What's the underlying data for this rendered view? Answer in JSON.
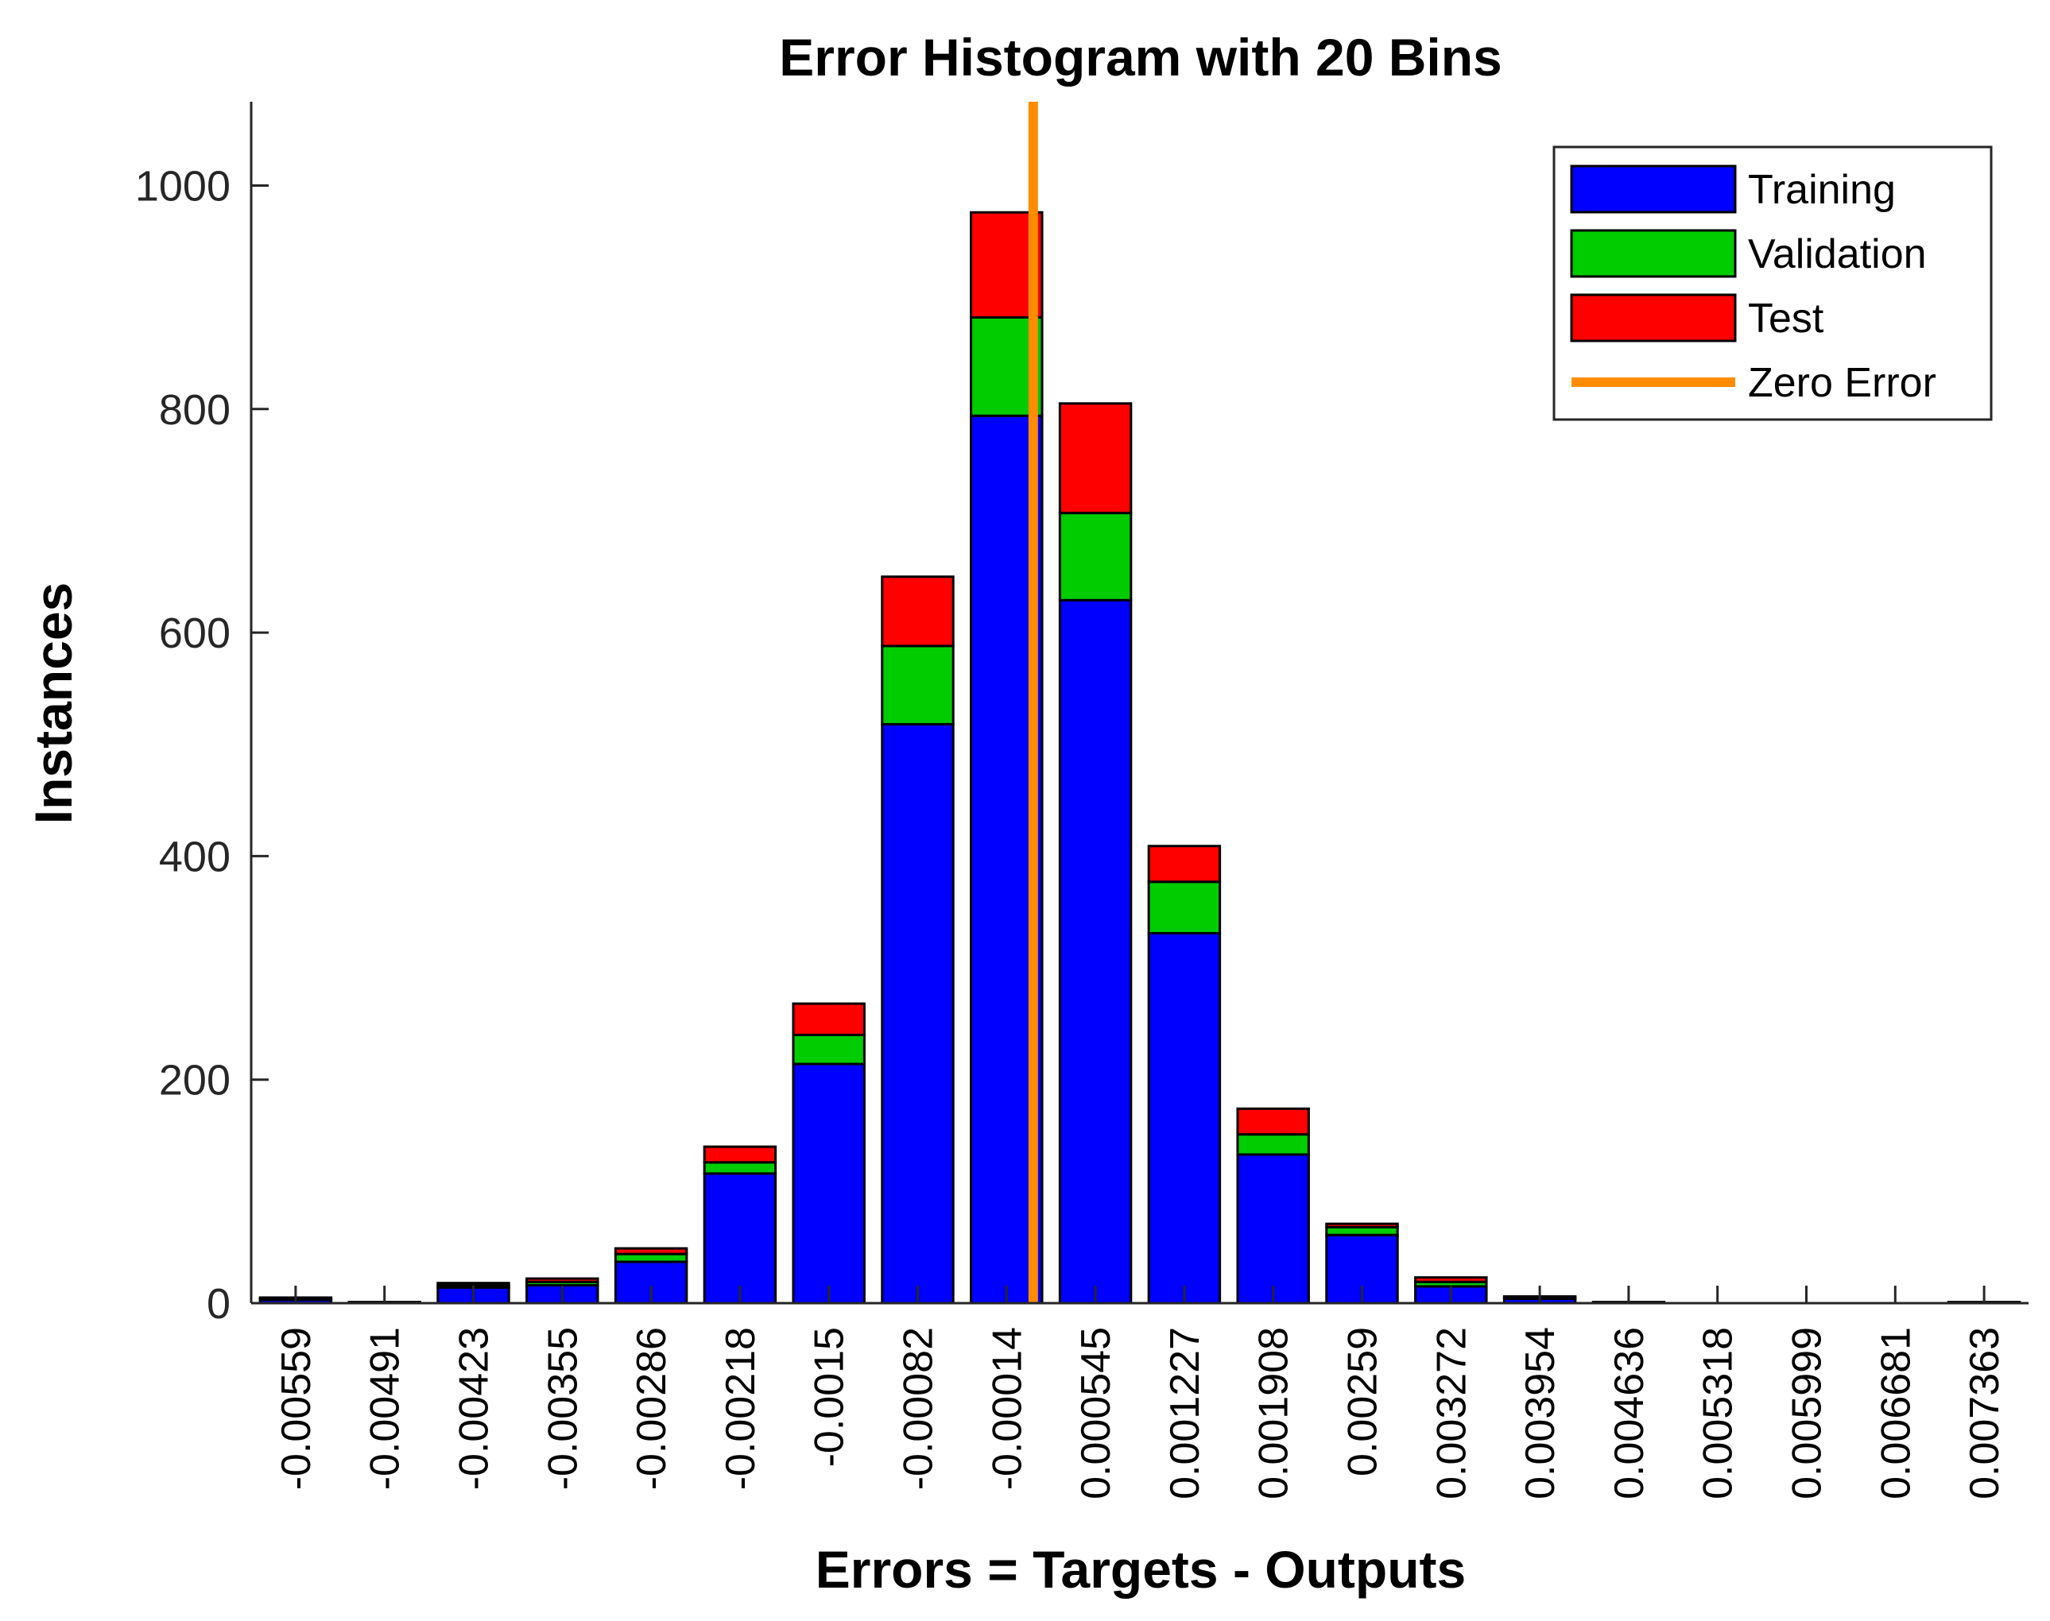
{
  "chart_data": {
    "type": "bar",
    "stacked": true,
    "title": "Error Histogram with 20 Bins",
    "xlabel": "Errors = Targets - Outputs",
    "ylabel": "Instances",
    "ylim": [
      0,
      1075
    ],
    "yticks": [
      0,
      200,
      400,
      600,
      800,
      1000
    ],
    "ytick_labels": [
      "0",
      "200",
      "400",
      "600",
      "800",
      "1000"
    ],
    "categories": [
      "-0.00559",
      "-0.00491",
      "-0.00423",
      "-0.00355",
      "-0.00286",
      "-0.00218",
      "-0.0015",
      "-0.00082",
      "-0.00014",
      "0.000545",
      "0.001227",
      "0.001908",
      "0.00259",
      "0.003272",
      "0.003954",
      "0.004636",
      "0.005318",
      "0.005999",
      "0.006681",
      "0.007363"
    ],
    "series": [
      {
        "name": "Training",
        "color": "#0000ff",
        "values": [
          3,
          1,
          14,
          16,
          37,
          116,
          214,
          518,
          794,
          629,
          331,
          133,
          61,
          15,
          4,
          1,
          0,
          0,
          0,
          1
        ]
      },
      {
        "name": "Validation",
        "color": "#00cc00",
        "values": [
          1,
          0,
          2,
          3,
          7,
          10,
          26,
          70,
          88,
          78,
          46,
          18,
          7,
          4,
          1,
          0,
          0,
          0,
          0,
          0
        ]
      },
      {
        "name": "Test",
        "color": "#ff0000",
        "values": [
          1,
          0,
          2,
          3,
          5,
          14,
          28,
          62,
          94,
          98,
          32,
          23,
          3,
          4,
          1,
          0,
          0,
          0,
          0,
          0
        ]
      }
    ],
    "zero_error": {
      "name": "Zero Error",
      "color": "#ff8c00",
      "category_index": 8,
      "offset_fraction": 0.3
    },
    "legend_position": "top-right",
    "grid": false
  }
}
